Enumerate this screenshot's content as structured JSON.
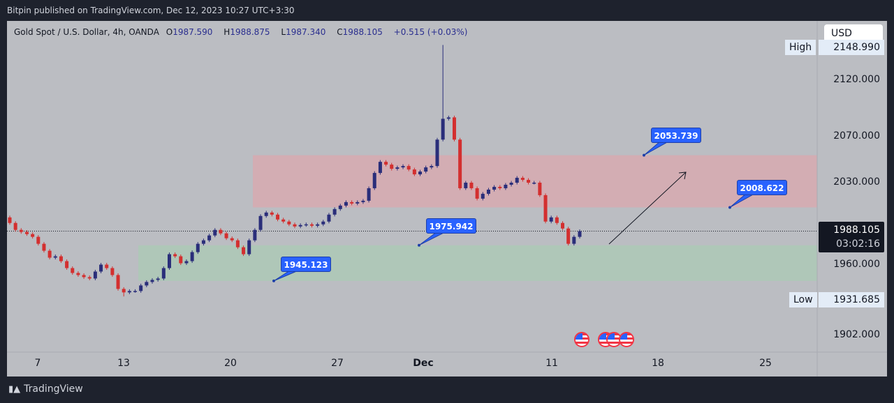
{
  "header": {
    "published": "Bitpin published on TradingView.com, Dec 12, 2023 10:27 UTC+3:30"
  },
  "legend": {
    "symbol": "Gold Spot / U.S. Dollar, 4h, OANDA",
    "o_label": "O",
    "o": "1987.590",
    "h_label": "H",
    "h": "1988.875",
    "l_label": "L",
    "l": "1987.340",
    "c_label": "C",
    "c": "1988.105",
    "change": "+0.515 (+0.03%)"
  },
  "price_axis": {
    "currency": "USD",
    "high_label": "High",
    "high": "2148.990",
    "low_label": "Low",
    "low": "1931.685",
    "ticks": [
      "2120.000",
      "2070.000",
      "2030.000",
      "1960.000",
      "1902.000"
    ],
    "current_price": "1988.105",
    "countdown": "03:02:16"
  },
  "time_axis": {
    "labels": [
      "7",
      "13",
      "20",
      "27",
      "Dec",
      "11",
      "18",
      "25"
    ]
  },
  "callouts": [
    "2053.739",
    "2008.622",
    "1975.942",
    "1945.123"
  ],
  "footer": {
    "brand": "TradingView"
  },
  "colors": {
    "up": "#2a2e7a",
    "down": "#d32f2f",
    "resistance_zone": "#e8a0a8",
    "support_zone": "#a6cfb0",
    "callout": "#2962ff"
  },
  "chart_data": {
    "type": "candlestick",
    "symbol": "XAUUSD 4h",
    "ylim": [
      1895,
      2160
    ],
    "zones": [
      {
        "name": "resistance",
        "top": 2053.739,
        "bottom": 2008.622
      },
      {
        "name": "support",
        "top": 1975.942,
        "bottom": 1945.123
      }
    ],
    "last_close": 1988.105,
    "period_high": 2148.99,
    "period_low": 1931.685,
    "first_open": 2000,
    "closes": [
      1995.2,
      1989.2,
      1987.4,
      1985.6,
      1983.2,
      1977.2,
      1971.2,
      1965.2,
      1966.4,
      1962.2,
      1956.2,
      1952,
      1950.2,
      1948.4,
      1947.2,
      1953.2,
      1959.2,
      1956.2,
      1950.2,
      1938.2,
      1935.2,
      1936.4,
      1936.4,
      1941.2,
      1944.2,
      1946,
      1947.2,
      1956.2,
      1968.2,
      1966.4,
      1960.4,
      1962.2,
      1970,
      1977.2,
      1980.2,
      1984.4,
      1989.2,
      1986.2,
      1982,
      1980.2,
      1974.2,
      1968.2,
      1980.2,
      1989.2,
      2001.2,
      2004.2,
      2002.4,
      1998.2,
      1996.4,
      1994,
      1992.2,
      1993.4,
      1994,
      1992.8,
      1994,
      1996.4,
      2002.4,
      2007.2,
      2010.2,
      2013.2,
      2012,
      2013.2,
      2014.4,
      2025.2,
      2038.4,
      2048,
      2045.6,
      2042,
      2043.2,
      2044.4,
      2041.4,
      2037.2,
      2039.6,
      2043.2,
      2044.4,
      2067.2,
      2085.2,
      2086.4,
      2067.2,
      2025.2,
      2030,
      2025.2,
      2016.2,
      2020.4,
      2024,
      2026.4,
      2025.2,
      2028.2,
      2030,
      2034.2,
      2032.4,
      2030,
      2030,
      2019.2,
      1996.4,
      2000,
      1995.2,
      1990.4,
      1977.2,
      1983.2,
      1988.105
    ]
  }
}
